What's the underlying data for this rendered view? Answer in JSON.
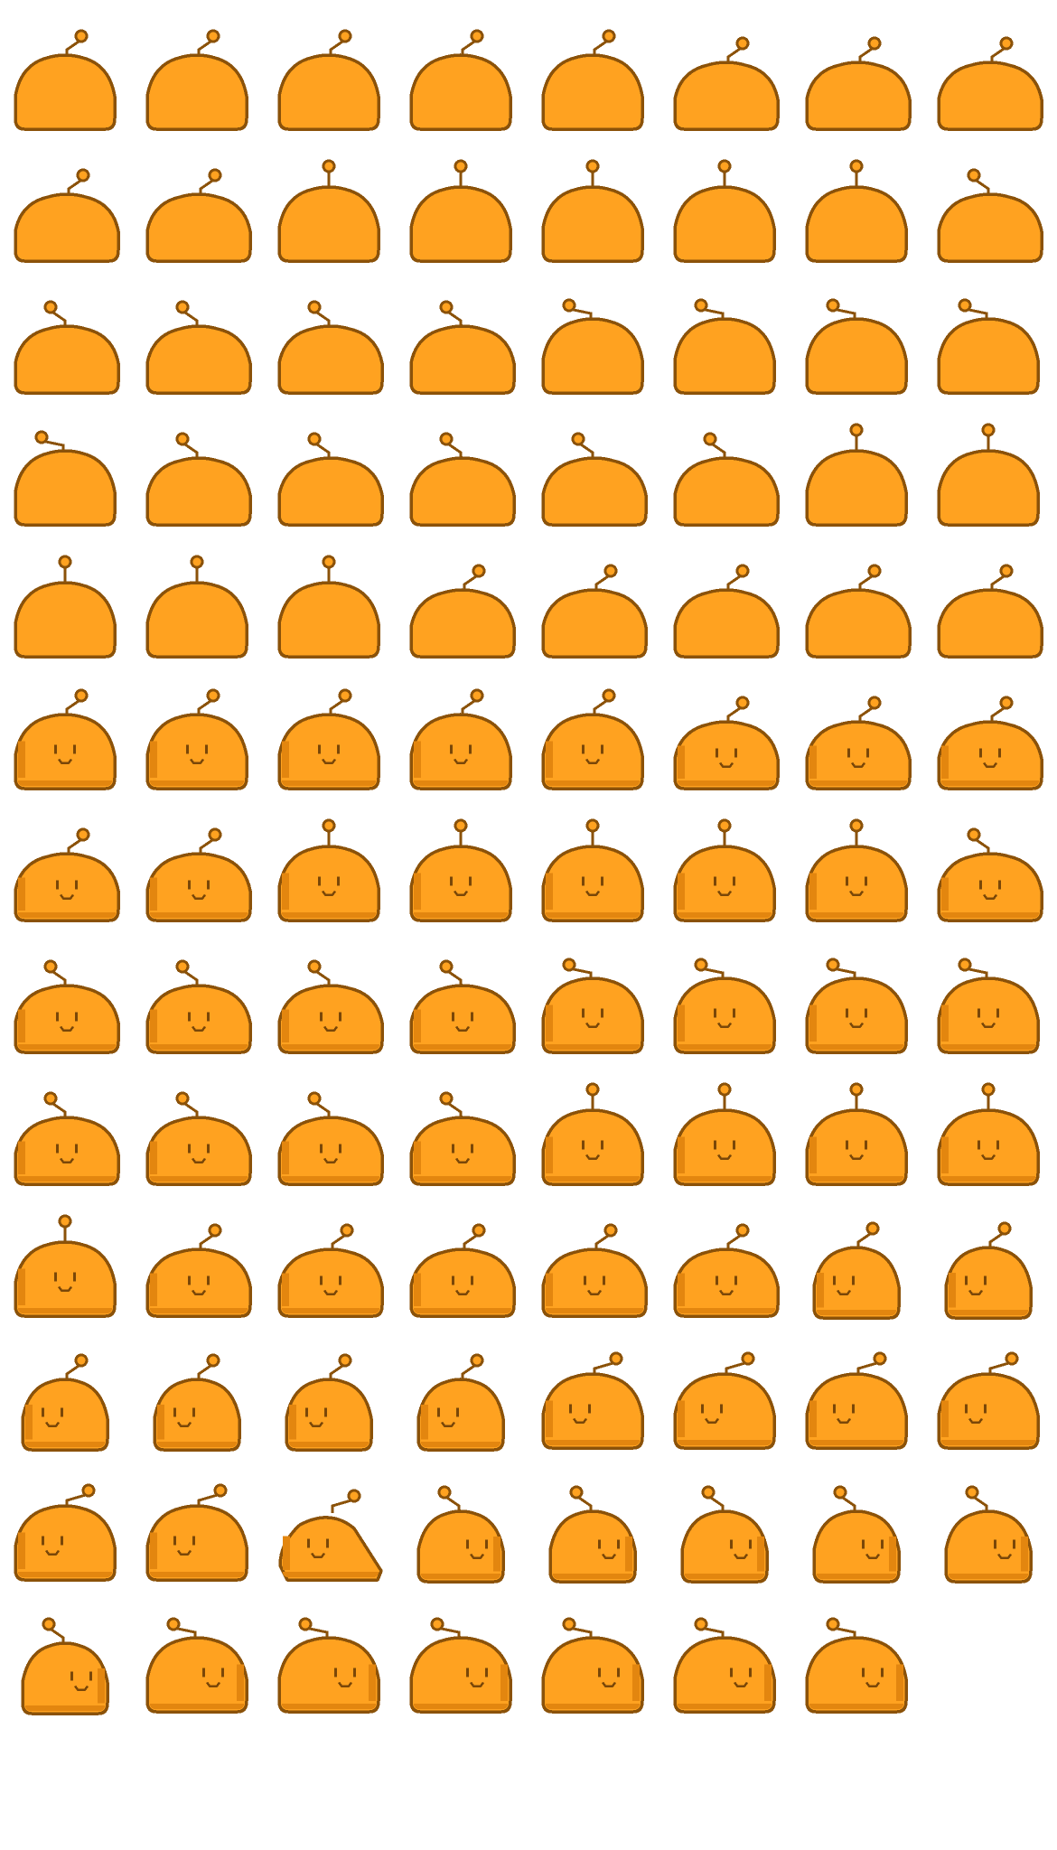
{
  "palette": {
    "body": "#FFA220",
    "outline": "#8B5209",
    "shade": "#E3860F",
    "face": "#7A4708"
  },
  "sheet": {
    "frames": [
      {
        "row": 0,
        "col": 0,
        "face": false,
        "antenna": "right",
        "shape": "round"
      },
      {
        "row": 0,
        "col": 1,
        "face": false,
        "antenna": "right",
        "shape": "round"
      },
      {
        "row": 0,
        "col": 2,
        "face": false,
        "antenna": "right",
        "shape": "round"
      },
      {
        "row": 0,
        "col": 3,
        "face": false,
        "antenna": "right",
        "shape": "round"
      },
      {
        "row": 0,
        "col": 4,
        "face": false,
        "antenna": "right",
        "shape": "round"
      },
      {
        "row": 0,
        "col": 5,
        "face": false,
        "antenna": "right",
        "shape": "wide"
      },
      {
        "row": 0,
        "col": 6,
        "face": false,
        "antenna": "right",
        "shape": "wide"
      },
      {
        "row": 0,
        "col": 7,
        "face": false,
        "antenna": "right",
        "shape": "wide"
      },
      {
        "row": 1,
        "col": 0,
        "face": false,
        "antenna": "right",
        "shape": "wide"
      },
      {
        "row": 1,
        "col": 1,
        "face": false,
        "antenna": "right",
        "shape": "wide"
      },
      {
        "row": 1,
        "col": 2,
        "face": false,
        "antenna": "up",
        "shape": "round"
      },
      {
        "row": 1,
        "col": 3,
        "face": false,
        "antenna": "up",
        "shape": "round"
      },
      {
        "row": 1,
        "col": 4,
        "face": false,
        "antenna": "up",
        "shape": "round"
      },
      {
        "row": 1,
        "col": 5,
        "face": false,
        "antenna": "up",
        "shape": "round"
      },
      {
        "row": 1,
        "col": 6,
        "face": false,
        "antenna": "up",
        "shape": "round"
      },
      {
        "row": 1,
        "col": 7,
        "face": false,
        "antenna": "left",
        "shape": "wide"
      },
      {
        "row": 2,
        "col": 0,
        "face": false,
        "antenna": "left",
        "shape": "wide"
      },
      {
        "row": 2,
        "col": 1,
        "face": false,
        "antenna": "left",
        "shape": "wide"
      },
      {
        "row": 2,
        "col": 2,
        "face": false,
        "antenna": "left",
        "shape": "wide"
      },
      {
        "row": 2,
        "col": 3,
        "face": false,
        "antenna": "left",
        "shape": "wide"
      },
      {
        "row": 2,
        "col": 4,
        "face": false,
        "antenna": "left-far",
        "shape": "round"
      },
      {
        "row": 2,
        "col": 5,
        "face": false,
        "antenna": "left-far",
        "shape": "round"
      },
      {
        "row": 2,
        "col": 6,
        "face": false,
        "antenna": "left-far",
        "shape": "round"
      },
      {
        "row": 2,
        "col": 7,
        "face": false,
        "antenna": "left-far",
        "shape": "round"
      },
      {
        "row": 3,
        "col": 0,
        "face": false,
        "antenna": "left-far",
        "shape": "round"
      },
      {
        "row": 3,
        "col": 1,
        "face": false,
        "antenna": "left",
        "shape": "wide"
      },
      {
        "row": 3,
        "col": 2,
        "face": false,
        "antenna": "left",
        "shape": "wide"
      },
      {
        "row": 3,
        "col": 3,
        "face": false,
        "antenna": "left",
        "shape": "wide"
      },
      {
        "row": 3,
        "col": 4,
        "face": false,
        "antenna": "left",
        "shape": "wide"
      },
      {
        "row": 3,
        "col": 5,
        "face": false,
        "antenna": "left",
        "shape": "wide"
      },
      {
        "row": 3,
        "col": 6,
        "face": false,
        "antenna": "up",
        "shape": "round"
      },
      {
        "row": 3,
        "col": 7,
        "face": false,
        "antenna": "up",
        "shape": "round"
      },
      {
        "row": 4,
        "col": 0,
        "face": false,
        "antenna": "up",
        "shape": "round"
      },
      {
        "row": 4,
        "col": 1,
        "face": false,
        "antenna": "up",
        "shape": "round"
      },
      {
        "row": 4,
        "col": 2,
        "face": false,
        "antenna": "up",
        "shape": "round"
      },
      {
        "row": 4,
        "col": 3,
        "face": false,
        "antenna": "right",
        "shape": "wide"
      },
      {
        "row": 4,
        "col": 4,
        "face": false,
        "antenna": "right",
        "shape": "wide"
      },
      {
        "row": 4,
        "col": 5,
        "face": false,
        "antenna": "right",
        "shape": "wide"
      },
      {
        "row": 4,
        "col": 6,
        "face": false,
        "antenna": "right",
        "shape": "wide"
      },
      {
        "row": 4,
        "col": 7,
        "face": false,
        "antenna": "right",
        "shape": "wide"
      },
      {
        "row": 5,
        "col": 0,
        "face": "center",
        "antenna": "right",
        "shape": "round"
      },
      {
        "row": 5,
        "col": 1,
        "face": "center",
        "antenna": "right",
        "shape": "round"
      },
      {
        "row": 5,
        "col": 2,
        "face": "center",
        "antenna": "right",
        "shape": "round"
      },
      {
        "row": 5,
        "col": 3,
        "face": "center",
        "antenna": "right",
        "shape": "round"
      },
      {
        "row": 5,
        "col": 4,
        "face": "center",
        "antenna": "right",
        "shape": "round"
      },
      {
        "row": 5,
        "col": 5,
        "face": "center",
        "antenna": "right",
        "shape": "wide"
      },
      {
        "row": 5,
        "col": 6,
        "face": "center",
        "antenna": "right",
        "shape": "wide"
      },
      {
        "row": 5,
        "col": 7,
        "face": "center",
        "antenna": "right",
        "shape": "wide"
      },
      {
        "row": 6,
        "col": 0,
        "face": "center",
        "antenna": "right",
        "shape": "wide"
      },
      {
        "row": 6,
        "col": 1,
        "face": "center",
        "antenna": "right",
        "shape": "wide"
      },
      {
        "row": 6,
        "col": 2,
        "face": "center",
        "antenna": "up",
        "shape": "round"
      },
      {
        "row": 6,
        "col": 3,
        "face": "center",
        "antenna": "up",
        "shape": "round"
      },
      {
        "row": 6,
        "col": 4,
        "face": "center",
        "antenna": "up",
        "shape": "round"
      },
      {
        "row": 6,
        "col": 5,
        "face": "center",
        "antenna": "up",
        "shape": "round"
      },
      {
        "row": 6,
        "col": 6,
        "face": "center",
        "antenna": "up",
        "shape": "round"
      },
      {
        "row": 6,
        "col": 7,
        "face": "center",
        "antenna": "left",
        "shape": "wide"
      },
      {
        "row": 7,
        "col": 0,
        "face": "center",
        "antenna": "left",
        "shape": "wide"
      },
      {
        "row": 7,
        "col": 1,
        "face": "center",
        "antenna": "left",
        "shape": "wide"
      },
      {
        "row": 7,
        "col": 2,
        "face": "center",
        "antenna": "left",
        "shape": "wide"
      },
      {
        "row": 7,
        "col": 3,
        "face": "center",
        "antenna": "left",
        "shape": "wide"
      },
      {
        "row": 7,
        "col": 4,
        "face": "center",
        "antenna": "left-far",
        "shape": "round"
      },
      {
        "row": 7,
        "col": 5,
        "face": "center",
        "antenna": "left-far",
        "shape": "round"
      },
      {
        "row": 7,
        "col": 6,
        "face": "center",
        "antenna": "left-far",
        "shape": "round"
      },
      {
        "row": 7,
        "col": 7,
        "face": "center",
        "antenna": "left-far",
        "shape": "round"
      },
      {
        "row": 8,
        "col": 0,
        "face": "center",
        "antenna": "left",
        "shape": "wide"
      },
      {
        "row": 8,
        "col": 1,
        "face": "center",
        "antenna": "left",
        "shape": "wide"
      },
      {
        "row": 8,
        "col": 2,
        "face": "center",
        "antenna": "left",
        "shape": "wide"
      },
      {
        "row": 8,
        "col": 3,
        "face": "center",
        "antenna": "left",
        "shape": "wide"
      },
      {
        "row": 8,
        "col": 4,
        "face": "center",
        "antenna": "up",
        "shape": "round"
      },
      {
        "row": 8,
        "col": 5,
        "face": "center",
        "antenna": "up",
        "shape": "round"
      },
      {
        "row": 8,
        "col": 6,
        "face": "center",
        "antenna": "up",
        "shape": "round"
      },
      {
        "row": 8,
        "col": 7,
        "face": "center",
        "antenna": "up",
        "shape": "round"
      },
      {
        "row": 9,
        "col": 0,
        "face": "center",
        "antenna": "up",
        "shape": "round"
      },
      {
        "row": 9,
        "col": 1,
        "face": "center",
        "antenna": "right",
        "shape": "wide"
      },
      {
        "row": 9,
        "col": 2,
        "face": "center",
        "antenna": "right",
        "shape": "wide"
      },
      {
        "row": 9,
        "col": 3,
        "face": "center",
        "antenna": "right",
        "shape": "wide"
      },
      {
        "row": 9,
        "col": 4,
        "face": "center",
        "antenna": "right",
        "shape": "wide"
      },
      {
        "row": 9,
        "col": 5,
        "face": "center",
        "antenna": "right",
        "shape": "wide"
      },
      {
        "row": 9,
        "col": 6,
        "face": "left",
        "antenna": "right",
        "shape": "tall"
      },
      {
        "row": 9,
        "col": 7,
        "face": "left",
        "antenna": "right",
        "shape": "tall"
      },
      {
        "row": 10,
        "col": 0,
        "face": "left",
        "antenna": "right",
        "shape": "tall"
      },
      {
        "row": 10,
        "col": 1,
        "face": "left",
        "antenna": "right",
        "shape": "tall"
      },
      {
        "row": 10,
        "col": 2,
        "face": "left",
        "antenna": "right",
        "shape": "tall"
      },
      {
        "row": 10,
        "col": 3,
        "face": "left",
        "antenna": "right",
        "shape": "tall"
      },
      {
        "row": 10,
        "col": 4,
        "face": "left",
        "antenna": "right-far",
        "shape": "round"
      },
      {
        "row": 10,
        "col": 5,
        "face": "left",
        "antenna": "right-far",
        "shape": "round"
      },
      {
        "row": 10,
        "col": 6,
        "face": "left",
        "antenna": "right-far",
        "shape": "round"
      },
      {
        "row": 10,
        "col": 7,
        "face": "left",
        "antenna": "right-far",
        "shape": "round"
      },
      {
        "row": 11,
        "col": 0,
        "face": "left",
        "antenna": "right-far",
        "shape": "round"
      },
      {
        "row": 11,
        "col": 1,
        "face": "left",
        "antenna": "right-far",
        "shape": "round"
      },
      {
        "row": 11,
        "col": 2,
        "face": "left",
        "antenna": "right-far",
        "shape": "lean"
      },
      {
        "row": 11,
        "col": 3,
        "face": "right",
        "antenna": "left",
        "shape": "tall"
      },
      {
        "row": 11,
        "col": 4,
        "face": "right",
        "antenna": "left",
        "shape": "tall"
      },
      {
        "row": 11,
        "col": 5,
        "face": "right",
        "antenna": "left",
        "shape": "tall"
      },
      {
        "row": 11,
        "col": 6,
        "face": "right",
        "antenna": "left",
        "shape": "tall"
      },
      {
        "row": 11,
        "col": 7,
        "face": "right",
        "antenna": "left",
        "shape": "tall"
      },
      {
        "row": 12,
        "col": 0,
        "face": "right",
        "antenna": "left",
        "shape": "tall"
      },
      {
        "row": 12,
        "col": 1,
        "face": "right",
        "antenna": "left-far",
        "shape": "round"
      },
      {
        "row": 12,
        "col": 2,
        "face": "right",
        "antenna": "left-far",
        "shape": "round"
      },
      {
        "row": 12,
        "col": 3,
        "face": "right",
        "antenna": "left-far",
        "shape": "round"
      },
      {
        "row": 12,
        "col": 4,
        "face": "right",
        "antenna": "left-far",
        "shape": "round"
      },
      {
        "row": 12,
        "col": 5,
        "face": "right",
        "antenna": "left-far",
        "shape": "round"
      },
      {
        "row": 12,
        "col": 6,
        "face": "right",
        "antenna": "left-far",
        "shape": "round"
      }
    ]
  }
}
